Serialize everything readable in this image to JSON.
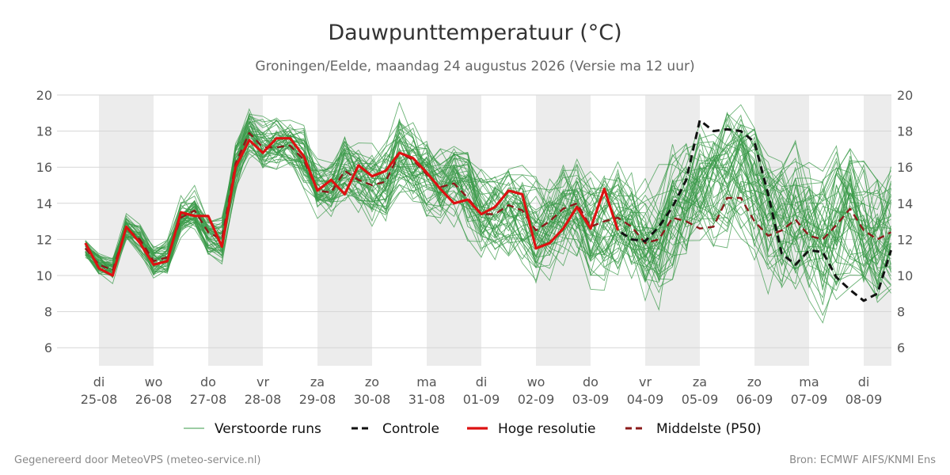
{
  "chart_data": {
    "type": "line",
    "title": "Dauwpunttemperatuur (°C)",
    "subtitle": "Groningen/Eelde, maandag 24 augustus 2026 (Versie ma 12 uur)",
    "ylim": [
      5,
      20
    ],
    "yticks": [
      6,
      8,
      10,
      12,
      14,
      16,
      18,
      20
    ],
    "grid": true,
    "shaded_days": [
      "25-08",
      "27-08",
      "29-08",
      "31-08",
      "02-09",
      "04-09",
      "06-09",
      "08-09"
    ],
    "x_ticks": [
      {
        "day": "di",
        "date": "25-08"
      },
      {
        "day": "wo",
        "date": "26-08"
      },
      {
        "day": "do",
        "date": "27-08"
      },
      {
        "day": "vr",
        "date": "28-08"
      },
      {
        "day": "za",
        "date": "29-08"
      },
      {
        "day": "zo",
        "date": "30-08"
      },
      {
        "day": "ma",
        "date": "31-08"
      },
      {
        "day": "di",
        "date": "01-09"
      },
      {
        "day": "wo",
        "date": "02-09"
      },
      {
        "day": "do",
        "date": "03-09"
      },
      {
        "day": "vr",
        "date": "04-09"
      },
      {
        "day": "za",
        "date": "05-09"
      },
      {
        "day": "zo",
        "date": "06-09"
      },
      {
        "day": "ma",
        "date": "07-09"
      },
      {
        "day": "di",
        "date": "08-09"
      }
    ],
    "x_unit": "days since 2026-08-25 00:00",
    "legend_position": "bottom",
    "series": [
      {
        "name": "Hoge resolutie",
        "color": "#dd1111",
        "style": "solid",
        "x": [
          -0.25,
          -0.0,
          0.25,
          0.5,
          0.75,
          1.0,
          1.25,
          1.5,
          1.75,
          2.0,
          2.25,
          2.5,
          2.75,
          3.0,
          3.25,
          3.5,
          3.75,
          4.0,
          4.25,
          4.5,
          4.75,
          5.0,
          5.25,
          5.5,
          5.75,
          6.0,
          6.25,
          6.5,
          6.75,
          7.0,
          7.25,
          7.5,
          7.75,
          8.0,
          8.25,
          8.5,
          8.75,
          9.0,
          9.25,
          9.5
        ],
        "y": [
          11.8,
          10.4,
          10.0,
          12.7,
          11.8,
          10.6,
          10.8,
          13.5,
          13.3,
          13.3,
          11.6,
          16.0,
          17.5,
          16.8,
          17.6,
          17.6,
          16.6,
          14.7,
          15.3,
          14.5,
          16.1,
          15.5,
          15.8,
          16.8,
          16.5,
          15.7,
          14.8,
          14.0,
          14.2,
          13.4,
          13.8,
          14.7,
          14.5,
          11.5,
          11.8,
          12.6,
          13.8,
          12.6,
          14.8,
          12.5
        ]
      },
      {
        "name": "Controle",
        "color": "#111111",
        "style": "dashed",
        "x": [
          9.25,
          9.5,
          9.75,
          10.0,
          10.25,
          10.5,
          10.75,
          11.0,
          11.25,
          11.5,
          11.75,
          12.0,
          12.25,
          12.5,
          12.75,
          13.0,
          13.25,
          13.5,
          13.75,
          14.0,
          14.25,
          14.5
        ],
        "y": [
          14.8,
          12.5,
          12.0,
          11.9,
          12.7,
          13.8,
          15.3,
          18.6,
          18.0,
          18.1,
          18.0,
          17.4,
          14.5,
          11.2,
          10.6,
          11.4,
          11.3,
          9.9,
          9.2,
          8.6,
          9.0,
          11.4
        ]
      },
      {
        "name": "Middelste (P50)",
        "color": "#8b1a1a",
        "style": "dashed",
        "x": [
          -0.25,
          -0.0,
          0.25,
          0.5,
          0.75,
          1.0,
          1.25,
          1.5,
          1.75,
          2.0,
          2.25,
          2.5,
          2.75,
          3.0,
          3.25,
          3.5,
          3.75,
          4.0,
          4.25,
          4.5,
          4.75,
          5.0,
          5.25,
          5.5,
          5.75,
          6.0,
          6.25,
          6.5,
          6.75,
          7.0,
          7.25,
          7.5,
          7.75,
          8.0,
          8.25,
          8.5,
          8.75,
          9.0,
          9.25,
          9.5,
          9.75,
          10.0,
          10.25,
          10.5,
          10.75,
          11.0,
          11.25,
          11.5,
          11.75,
          12.0,
          12.25,
          12.5,
          12.75,
          13.0,
          13.25,
          13.5,
          13.75,
          14.0,
          14.25,
          14.5
        ],
        "y": [
          11.5,
          10.6,
          10.3,
          12.6,
          12.0,
          10.8,
          11.0,
          13.2,
          13.6,
          12.4,
          12.0,
          16.2,
          17.9,
          17.1,
          17.1,
          17.2,
          16.4,
          14.7,
          14.6,
          15.8,
          15.3,
          15.0,
          15.2,
          16.8,
          16.4,
          15.6,
          14.9,
          15.1,
          14.3,
          13.4,
          13.4,
          13.9,
          13.6,
          12.5,
          13.0,
          13.7,
          14.0,
          12.7,
          13.0,
          13.2,
          12.7,
          11.8,
          12.0,
          13.2,
          13.0,
          12.6,
          12.7,
          14.3,
          14.3,
          13.0,
          12.2,
          12.5,
          13.1,
          12.2,
          12.0,
          12.8,
          13.7,
          12.5,
          12.0,
          12.4
        ]
      }
    ],
    "ensemble": {
      "name": "Verstoorde runs",
      "color": "#3a9a48",
      "style": "thin",
      "member_count": 50
    }
  },
  "legend": {
    "items": [
      {
        "label": "Verstoorde runs",
        "color": "#3a9a48",
        "style": "thin"
      },
      {
        "label": "Controle",
        "color": "#111111",
        "style": "dashed"
      },
      {
        "label": "Hoge resolutie",
        "color": "#dd1111",
        "style": "solid"
      },
      {
        "label": "Middelste (P50)",
        "color": "#8b1a1a",
        "style": "dashed"
      }
    ]
  },
  "footer": {
    "left": "Gegenereerd door MeteoVPS (meteo-service.nl)",
    "right": "Bron: ECMWF AIFS/KNMI Ens"
  }
}
